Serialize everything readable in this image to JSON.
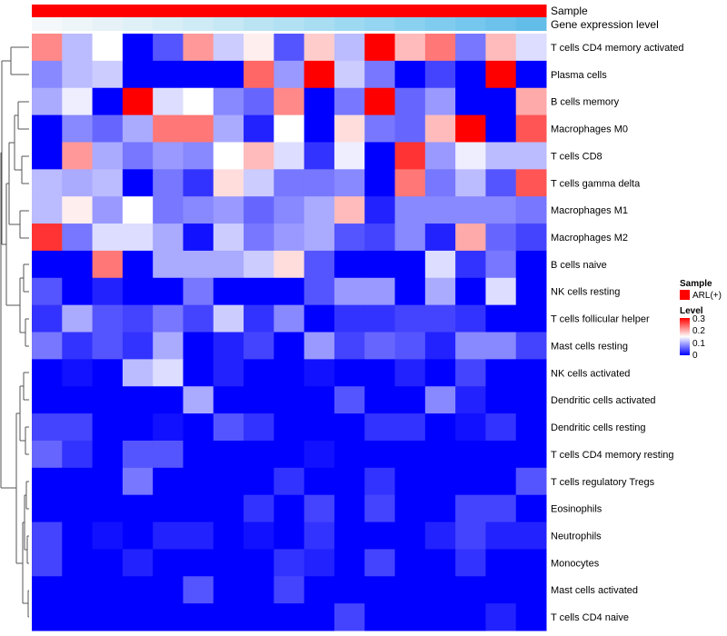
{
  "chart_data": {
    "type": "heatmap",
    "sample_annotation_label": "Sample",
    "gene_expression_annotation_label": "Gene expression level",
    "sample_color": "#ff0000",
    "gene_expression_colors": [
      "#f4f8fb",
      "#edf5f9",
      "#e6f2f8",
      "#dff0f6",
      "#d8eef6",
      "#cfebf5",
      "#c5e8f4",
      "#bbe4f3",
      "#b2e1f3",
      "#a8ddf2",
      "#9ed9f2",
      "#94d5f1",
      "#8ad1f0",
      "#80ccef",
      "#76c7ed",
      "#6cc2eb",
      "#62bde8"
    ],
    "rows": [
      "T cells CD4 memory activated",
      "Plasma cells",
      "B cells memory",
      "Macrophages M0",
      "T cells CD8",
      "T cells gamma delta",
      "Macrophages M1",
      "Macrophages M2",
      "B cells naive",
      "NK cells resting",
      "T cells follicular helper",
      "Mast cells resting",
      "NK cells activated",
      "Dendritic cells activated",
      "Dendritic cells resting",
      "T cells CD4 memory resting",
      "T cells regulatory  Tregs",
      "Eosinophils",
      "Neutrophils",
      "Monocytes",
      "Mast cells activated",
      "T cells CD4 naive"
    ],
    "values": [
      [
        0.22,
        0.11,
        0.15,
        0.0,
        0.05,
        0.21,
        0.12,
        0.16,
        0.05,
        0.18,
        0.11,
        0.3,
        0.19,
        0.23,
        0.07,
        0.19,
        0.13
      ],
      [
        0.08,
        0.11,
        0.12,
        0.0,
        0.0,
        0.0,
        0.0,
        0.24,
        0.09,
        0.3,
        0.12,
        0.07,
        0.0,
        0.04,
        0.0,
        0.3,
        0.0
      ],
      [
        0.1,
        0.14,
        0.0,
        0.3,
        0.13,
        0.15,
        0.08,
        0.06,
        0.22,
        0.0,
        0.07,
        0.3,
        0.06,
        0.09,
        0.0,
        0.0,
        0.2
      ],
      [
        0.0,
        0.08,
        0.06,
        0.1,
        0.23,
        0.23,
        0.1,
        0.02,
        0.15,
        0.0,
        0.17,
        0.07,
        0.06,
        0.19,
        0.3,
        0.0,
        0.25
      ],
      [
        0.0,
        0.21,
        0.1,
        0.07,
        0.09,
        0.08,
        0.15,
        0.19,
        0.13,
        0.03,
        0.14,
        0.0,
        0.27,
        0.09,
        0.14,
        0.11,
        0.11
      ],
      [
        0.11,
        0.1,
        0.11,
        0.0,
        0.07,
        0.03,
        0.17,
        0.12,
        0.07,
        0.07,
        0.08,
        0.0,
        0.23,
        0.07,
        0.11,
        0.05,
        0.25
      ],
      [
        0.11,
        0.16,
        0.09,
        0.15,
        0.07,
        0.08,
        0.09,
        0.06,
        0.08,
        0.1,
        0.19,
        0.02,
        0.08,
        0.08,
        0.08,
        0.08,
        0.07
      ],
      [
        0.27,
        0.07,
        0.13,
        0.13,
        0.1,
        0.01,
        0.12,
        0.07,
        0.09,
        0.1,
        0.05,
        0.04,
        0.08,
        0.02,
        0.2,
        0.06,
        0.04
      ],
      [
        0.0,
        0.0,
        0.23,
        0.0,
        0.1,
        0.1,
        0.1,
        0.12,
        0.17,
        0.05,
        0.0,
        0.0,
        0.0,
        0.13,
        0.03,
        0.07,
        0.0
      ],
      [
        0.05,
        0.0,
        0.02,
        0.0,
        0.0,
        0.07,
        0.0,
        0.0,
        0.0,
        0.05,
        0.09,
        0.09,
        0.0,
        0.1,
        0.0,
        0.13,
        0.0
      ],
      [
        0.03,
        0.1,
        0.05,
        0.04,
        0.07,
        0.04,
        0.12,
        0.03,
        0.08,
        0.0,
        0.03,
        0.03,
        0.04,
        0.04,
        0.03,
        0.0,
        0.0
      ],
      [
        0.07,
        0.03,
        0.05,
        0.03,
        0.1,
        0.0,
        0.02,
        0.04,
        0.0,
        0.09,
        0.04,
        0.06,
        0.05,
        0.02,
        0.08,
        0.08,
        0.04
      ],
      [
        0.0,
        0.01,
        0.0,
        0.11,
        0.13,
        0.0,
        0.02,
        0.0,
        0.0,
        0.01,
        0.0,
        0.0,
        0.02,
        0.0,
        0.04,
        0.0,
        0.0
      ],
      [
        0.0,
        0.0,
        0.0,
        0.0,
        0.0,
        0.1,
        0.0,
        0.0,
        0.0,
        0.0,
        0.05,
        0.0,
        0.0,
        0.08,
        0.02,
        0.0,
        0.0
      ],
      [
        0.04,
        0.04,
        0.0,
        0.0,
        0.01,
        0.0,
        0.05,
        0.03,
        0.0,
        0.0,
        0.0,
        0.03,
        0.03,
        0.0,
        0.01,
        0.03,
        0.0
      ],
      [
        0.06,
        0.03,
        0.0,
        0.05,
        0.05,
        0.0,
        0.0,
        0.0,
        0.0,
        0.01,
        0.0,
        0.0,
        0.0,
        0.0,
        0.0,
        0.0,
        0.0
      ],
      [
        0.0,
        0.0,
        0.0,
        0.07,
        0.0,
        0.0,
        0.0,
        0.0,
        0.03,
        0.0,
        0.0,
        0.03,
        0.0,
        0.0,
        0.0,
        0.0,
        0.05
      ],
      [
        0.0,
        0.0,
        0.0,
        0.0,
        0.0,
        0.0,
        0.0,
        0.03,
        0.0,
        0.04,
        0.0,
        0.04,
        0.0,
        0.0,
        0.04,
        0.04,
        0.0
      ],
      [
        0.04,
        0.0,
        0.01,
        0.0,
        0.02,
        0.02,
        0.0,
        0.01,
        0.0,
        0.03,
        0.0,
        0.0,
        0.0,
        0.02,
        0.04,
        0.02,
        0.02
      ],
      [
        0.04,
        0.0,
        0.0,
        0.02,
        0.0,
        0.0,
        0.0,
        0.0,
        0.03,
        0.02,
        0.0,
        0.04,
        0.0,
        0.0,
        0.03,
        0.0,
        0.0
      ],
      [
        0.0,
        0.0,
        0.0,
        0.0,
        0.0,
        0.05,
        0.0,
        0.0,
        0.04,
        0.0,
        0.0,
        0.0,
        0.0,
        0.0,
        0.0,
        0.0,
        0.0
      ],
      [
        0.0,
        0.0,
        0.0,
        0.0,
        0.0,
        0.0,
        0.0,
        0.0,
        0.0,
        0.0,
        0.04,
        0.0,
        0.0,
        0.0,
        0.0,
        0.02,
        0.0
      ]
    ],
    "color_scale": {
      "low": "#0000ff",
      "mid": "#ffffff",
      "high": "#ff0000",
      "range": [
        0,
        0.3
      ],
      "midpoint": 0.15
    },
    "legend": {
      "sample_title": "Sample",
      "sample_entry": "ARL(+)",
      "level_title": "Level",
      "level_ticks": [
        "0.3",
        "0.2",
        "0.1",
        "0"
      ]
    }
  }
}
